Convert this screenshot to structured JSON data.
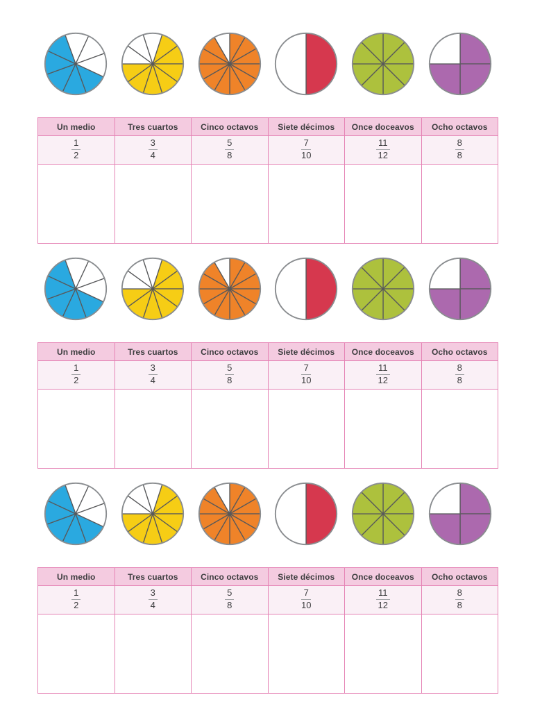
{
  "page_bg": "#FFFFFF",
  "sections_count": 3,
  "pie_style": {
    "line": "#58595B",
    "ring": "#8A8D90",
    "unshaded": "#FFFFFF"
  },
  "pies": [
    {
      "name": "pie-cinco-octavos",
      "color_name": "blue",
      "fraction_value": "5/8",
      "slices": 8,
      "shaded_count": 5,
      "shaded_start": 3,
      "offset_deg": -20,
      "color": "#2AA9E0"
    },
    {
      "name": "pie-siete-decimos",
      "color_name": "yellow",
      "fraction_value": "7/10",
      "slices": 10,
      "shaded_count": 7,
      "shaded_start": 0,
      "offset_deg": 18,
      "color": "#F6CD15"
    },
    {
      "name": "pie-once-doceavos",
      "color_name": "orange",
      "fraction_value": "11/12",
      "slices": 12,
      "shaded_count": 11,
      "shaded_start": 0,
      "offset_deg": 0,
      "color": "#EF8329"
    },
    {
      "name": "pie-un-medio",
      "color_name": "red",
      "fraction_value": "1/2",
      "slices": 2,
      "shaded_count": 1,
      "shaded_start": 0,
      "offset_deg": 0,
      "color": "#D6384E"
    },
    {
      "name": "pie-ocho-octavos",
      "color_name": "green",
      "fraction_value": "8/8",
      "slices": 8,
      "shaded_count": 8,
      "shaded_start": 0,
      "offset_deg": 0,
      "color": "#ADC13D"
    },
    {
      "name": "pie-tres-cuartos",
      "color_name": "purple",
      "fraction_value": "3/4",
      "slices": 4,
      "shaded_count": 3,
      "shaded_start": 0,
      "offset_deg": 0,
      "color": "#AC69AE"
    }
  ],
  "table": {
    "headers": [
      "Un medio",
      "Tres cuartos",
      "Cinco octavos",
      "Siete décimos",
      "Once doceavos",
      "Ocho octavos"
    ],
    "fractions": [
      {
        "numerator": "1",
        "denominator": "2"
      },
      {
        "numerator": "3",
        "denominator": "4"
      },
      {
        "numerator": "5",
        "denominator": "8"
      },
      {
        "numerator": "7",
        "denominator": "10"
      },
      {
        "numerator": "11",
        "denominator": "12"
      },
      {
        "numerator": "8",
        "denominator": "8"
      }
    ],
    "answer_row": [
      "",
      "",
      "",
      "",
      "",
      ""
    ],
    "colors": {
      "border": "#E583B5",
      "header_bg": "#F4CBE0",
      "fraction_bg": "#FAF0F6",
      "text": "#3D3D3F",
      "fraction_bar": "#9D9FA2"
    }
  }
}
